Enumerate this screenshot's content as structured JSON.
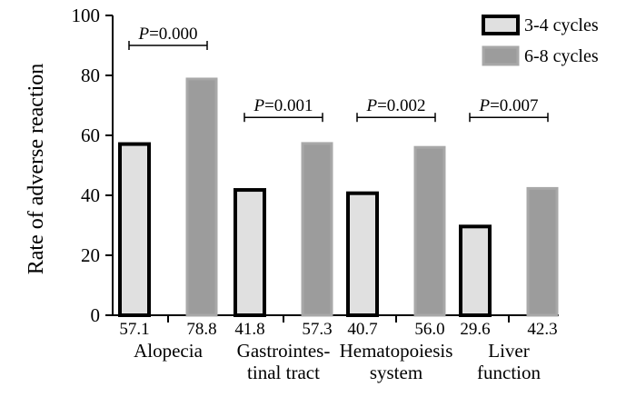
{
  "chart_data": {
    "type": "bar",
    "title": "",
    "xlabel": "",
    "ylabel": "Rate of adverse reaction",
    "ylim": [
      0,
      100
    ],
    "yticks": [
      0,
      20,
      40,
      60,
      80,
      100
    ],
    "grid": false,
    "legend_position": "top-right",
    "categories": [
      {
        "label_lines": [
          "Alopecia"
        ]
      },
      {
        "label_lines": [
          "Gastrointes-",
          "tinal tract"
        ]
      },
      {
        "label_lines": [
          "Hematopoiesis",
          "system"
        ]
      },
      {
        "label_lines": [
          "Liver",
          "function"
        ]
      }
    ],
    "series": [
      {
        "name": "3-4 cycles",
        "values": [
          57.1,
          41.8,
          40.7,
          29.6
        ],
        "value_labels": [
          "57.1",
          "41.8",
          "40.7",
          "29.6"
        ],
        "fill": "#e0e0e0",
        "stroke": "#000000"
      },
      {
        "name": "6-8 cycles",
        "values": [
          78.8,
          57.3,
          56.0,
          42.3
        ],
        "value_labels": [
          "78.8",
          "57.3",
          "56.0",
          "42.3"
        ],
        "fill": "#9c9c9c",
        "stroke": "#a8a8a8"
      }
    ],
    "annotations": [
      {
        "p_label": "P",
        "p_value": "=0.000",
        "y": 90
      },
      {
        "p_label": "P",
        "p_value": "=0.001",
        "y": 66
      },
      {
        "p_label": "P",
        "p_value": "=0.002",
        "y": 66
      },
      {
        "p_label": "P",
        "p_value": "=0.007",
        "y": 66
      }
    ]
  }
}
